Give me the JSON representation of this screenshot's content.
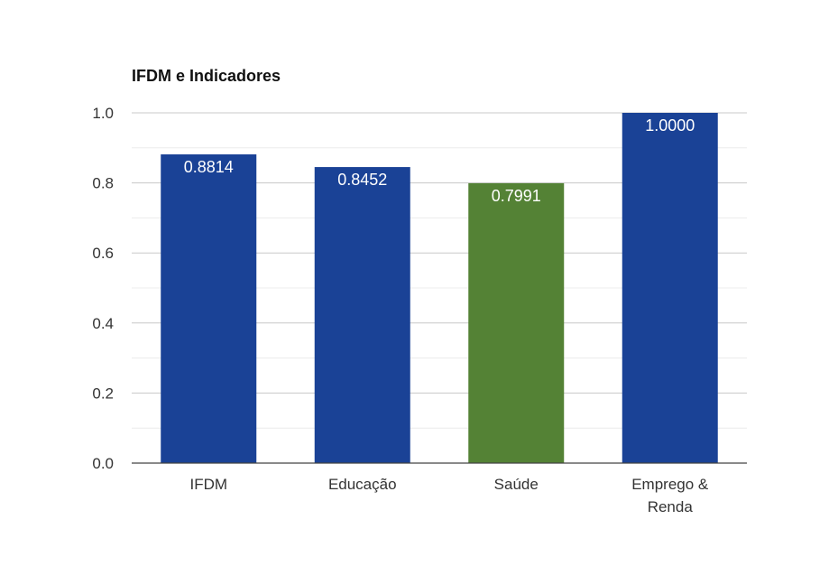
{
  "chart_data": {
    "type": "bar",
    "title": "IFDM e Indicadores",
    "xlabel": "",
    "ylabel": "",
    "categories": [
      [
        "IFDM"
      ],
      [
        "Educação"
      ],
      [
        "Saúde"
      ],
      [
        "Emprego &",
        "Renda"
      ]
    ],
    "values": [
      0.8814,
      0.8452,
      0.7991,
      1.0
    ],
    "data_labels": [
      "0.8814",
      "0.8452",
      "0.7991",
      "1.0000"
    ],
    "bar_colors": [
      "#1a4296",
      "#1a4296",
      "#548235",
      "#1a4296"
    ],
    "ylim": [
      0,
      1.0
    ],
    "y_ticks": [
      "0.0",
      "0.2",
      "0.4",
      "0.6",
      "0.8",
      "1.0"
    ],
    "grid": true,
    "legend": "none"
  }
}
